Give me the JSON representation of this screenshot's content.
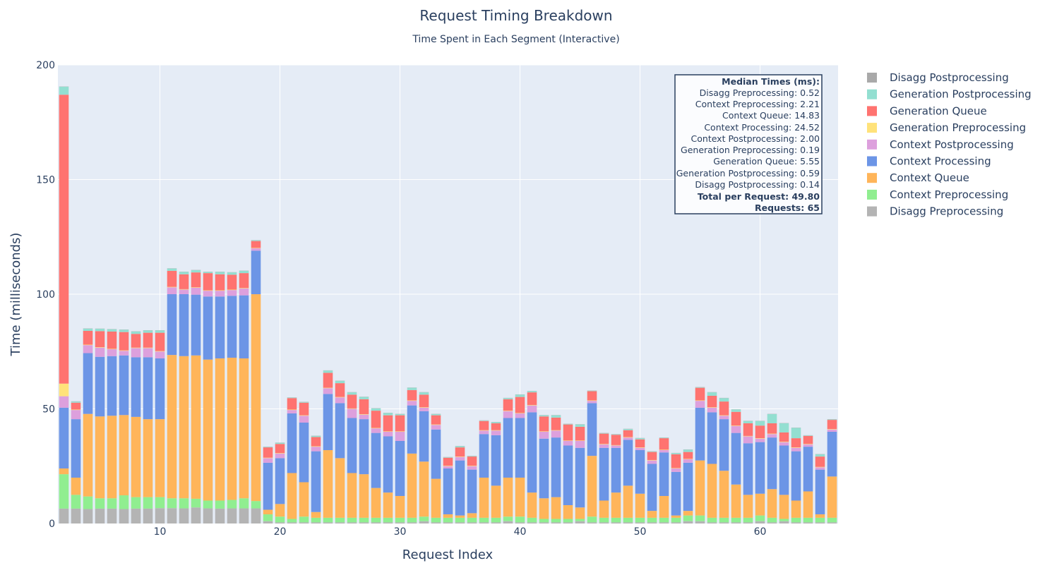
{
  "chart_data": {
    "type": "bar",
    "stacked": true,
    "title": "Request Timing Breakdown",
    "subtitle": "Time Spent in Each Segment (Interactive)",
    "xlabel": "Request Index",
    "ylabel": "Time (milliseconds)",
    "xlim": [
      1.5,
      66.5
    ],
    "ylim": [
      0,
      200
    ],
    "x_ticks": [
      10,
      20,
      30,
      40,
      50,
      60
    ],
    "y_ticks": [
      0,
      50,
      100,
      150,
      200
    ],
    "grid": true,
    "legend_position": "right",
    "x": [
      2,
      3,
      4,
      5,
      6,
      7,
      8,
      9,
      10,
      11,
      12,
      13,
      14,
      15,
      16,
      17,
      18,
      19,
      20,
      21,
      22,
      23,
      24,
      25,
      26,
      27,
      28,
      29,
      30,
      31,
      32,
      33,
      34,
      35,
      36,
      37,
      38,
      39,
      40,
      41,
      42,
      43,
      44,
      45,
      46,
      47,
      48,
      49,
      50,
      51,
      52,
      53,
      54,
      55,
      56,
      57,
      58,
      59,
      60,
      61,
      62,
      63,
      64,
      65,
      66
    ],
    "series": [
      {
        "name": "Disagg Preprocessing",
        "color": "#b4b4b4",
        "values": [
          6.5,
          6.5,
          6.3,
          6.5,
          6.5,
          6.3,
          6.5,
          6.5,
          6.7,
          6.7,
          6.6,
          7.0,
          6.6,
          6.5,
          6.6,
          6.6,
          6.6,
          1.0,
          0.5,
          0.5,
          0.5,
          0.5,
          0.5,
          0.5,
          0.5,
          0.5,
          0.5,
          0.5,
          0.5,
          0.5,
          1.0,
          0.5,
          0.5,
          0.5,
          0.5,
          0.5,
          0.5,
          1.0,
          0.5,
          0.5,
          0.5,
          0.5,
          0.5,
          1.0,
          0.5,
          0.5,
          0.5,
          0.5,
          0.5,
          0.5,
          0.5,
          0.5,
          1.0,
          1.0,
          0.5,
          0.5,
          0.5,
          0.5,
          1.0,
          0.5,
          1.0,
          0.5,
          0.5,
          0.5,
          0.5
        ]
      },
      {
        "name": "Context Preprocessing",
        "color": "#90ee90",
        "values": [
          15.0,
          6.0,
          5.5,
          4.5,
          4.5,
          6.0,
          5.0,
          5.0,
          4.8,
          4.3,
          4.4,
          3.8,
          3.4,
          3.5,
          3.7,
          4.4,
          3.2,
          3.0,
          2.5,
          1.5,
          2.5,
          2.0,
          2.0,
          2.0,
          2.0,
          2.0,
          2.0,
          2.0,
          2.0,
          2.0,
          2.0,
          2.0,
          2.0,
          2.0,
          2.0,
          2.0,
          2.0,
          2.0,
          2.5,
          2.0,
          1.5,
          1.5,
          1.5,
          1.0,
          2.5,
          2.0,
          2.0,
          2.0,
          2.0,
          2.0,
          2.0,
          2.0,
          2.5,
          2.5,
          2.0,
          2.0,
          2.0,
          2.0,
          2.5,
          2.0,
          1.0,
          2.0,
          2.0,
          2.0,
          2.0
        ]
      },
      {
        "name": "Context Queue",
        "color": "#ffb55a",
        "values": [
          2.5,
          7.5,
          36.0,
          35.7,
          36.0,
          35.0,
          35.0,
          34.0,
          34.0,
          62.5,
          62.0,
          62.5,
          61.5,
          62.0,
          62.0,
          61.0,
          90.2,
          2.0,
          5.5,
          20.0,
          15.0,
          2.5,
          29.5,
          26.0,
          19.5,
          19.0,
          13.0,
          11.0,
          9.5,
          28.0,
          24.0,
          17.0,
          1.5,
          1.0,
          2.0,
          17.5,
          14.0,
          17.0,
          17.0,
          11.0,
          9.0,
          9.5,
          6.0,
          5.0,
          26.5,
          7.5,
          11.0,
          14.0,
          10.5,
          3.0,
          9.5,
          1.0,
          2.0,
          24.0,
          23.5,
          20.5,
          14.5,
          10.0,
          9.5,
          12.5,
          10.5,
          7.5,
          11.5,
          1.5,
          18.0
        ]
      },
      {
        "name": "Context Processing",
        "color": "#6c95e6",
        "values": [
          26.5,
          25.5,
          26.5,
          26.0,
          26.0,
          26.0,
          26.0,
          27.0,
          26.5,
          26.5,
          27.0,
          26.5,
          27.5,
          27.0,
          27.0,
          27.5,
          19.0,
          20.5,
          20.0,
          26.0,
          26.0,
          26.5,
          24.5,
          24.0,
          24.0,
          24.0,
          24.0,
          24.5,
          24.0,
          21.0,
          22.0,
          21.5,
          20.0,
          24.0,
          19.0,
          19.0,
          22.0,
          26.0,
          26.0,
          35.0,
          26.0,
          26.0,
          26.0,
          26.0,
          23.0,
          23.0,
          19.5,
          20.0,
          19.0,
          20.5,
          19.0,
          19.0,
          21.0,
          23.0,
          22.5,
          22.5,
          22.5,
          22.5,
          22.5,
          22.5,
          21.5,
          21.5,
          19.5,
          19.5,
          19.5
        ]
      },
      {
        "name": "Context Postprocessing",
        "color": "#dda0dd",
        "values": [
          5.0,
          4.0,
          3.5,
          4.0,
          3.0,
          2.0,
          4.0,
          4.0,
          3.0,
          3.0,
          2.0,
          3.0,
          2.5,
          2.5,
          2.5,
          3.0,
          1.0,
          2.0,
          2.0,
          1.5,
          3.0,
          2.0,
          2.5,
          2.5,
          4.0,
          2.0,
          2.0,
          2.0,
          4.0,
          2.0,
          1.5,
          2.0,
          1.0,
          1.5,
          1.5,
          1.5,
          2.0,
          3.0,
          2.0,
          3.0,
          3.0,
          3.0,
          2.0,
          3.0,
          1.0,
          1.5,
          1.0,
          1.0,
          1.0,
          1.5,
          1.0,
          1.5,
          1.5,
          3.0,
          2.0,
          1.5,
          3.0,
          3.0,
          1.5,
          1.5,
          1.5,
          1.5,
          1.0,
          1.0,
          1.0
        ]
      },
      {
        "name": "Generation Preprocessing",
        "color": "#ffe27a",
        "values": [
          5.5,
          0.2,
          0.2,
          0.2,
          0.2,
          0.2,
          0.2,
          0.2,
          0.2,
          0.2,
          0.2,
          0.2,
          0.2,
          0.2,
          0.2,
          0.2,
          0.2,
          0.2,
          0.2,
          0.2,
          0.2,
          0.2,
          0.2,
          0.2,
          0.2,
          0.2,
          0.2,
          0.2,
          0.2,
          0.2,
          0.2,
          0.2,
          0.2,
          0.2,
          0.2,
          0.2,
          0.2,
          0.2,
          0.2,
          0.2,
          0.2,
          0.2,
          0.2,
          0.2,
          0.2,
          0.2,
          0.2,
          0.2,
          0.2,
          0.2,
          0.2,
          0.2,
          0.2,
          0.2,
          0.2,
          0.2,
          0.2,
          0.2,
          0.2,
          0.2,
          0.2,
          0.2,
          0.2,
          0.2,
          0.2
        ]
      },
      {
        "name": "Generation Queue",
        "color": "#ff7370",
        "values": [
          126.0,
          3.0,
          6.0,
          7.0,
          7.5,
          8.0,
          6.0,
          6.5,
          8.0,
          7.0,
          6.5,
          6.5,
          7.5,
          7.0,
          6.5,
          6.5,
          3.0,
          4.5,
          4.0,
          5.0,
          5.5,
          4.0,
          6.5,
          6.0,
          6.0,
          6.5,
          7.5,
          7.0,
          7.0,
          4.5,
          5.5,
          4.0,
          3.5,
          4.0,
          4.0,
          4.0,
          3.0,
          5.0,
          7.0,
          5.5,
          6.5,
          5.5,
          7.0,
          6.0,
          4.0,
          4.5,
          4.5,
          3.0,
          3.5,
          3.5,
          5.0,
          6.0,
          3.0,
          5.5,
          5.0,
          6.0,
          6.0,
          5.5,
          5.5,
          4.5,
          4.0,
          4.0,
          3.5,
          4.5,
          4.0
        ]
      },
      {
        "name": "Generation Postprocessing",
        "color": "#93dfd1",
        "values": [
          3.5,
          0.5,
          1.0,
          1.0,
          1.0,
          1.0,
          1.0,
          1.0,
          1.0,
          1.0,
          1.0,
          1.0,
          0.5,
          1.0,
          1.0,
          1.0,
          0.3,
          0.2,
          0.5,
          0.2,
          0.3,
          0.5,
          1.0,
          1.0,
          1.0,
          1.0,
          1.0,
          1.0,
          0.5,
          1.0,
          1.0,
          0.5,
          0.2,
          0.5,
          0.2,
          0.2,
          0.5,
          0.5,
          1.0,
          0.5,
          0.5,
          1.0,
          0.2,
          1.0,
          0.2,
          0.2,
          0.2,
          0.5,
          0.5,
          0.2,
          0.2,
          0.5,
          1.0,
          0.2,
          1.5,
          1.5,
          1.0,
          1.0,
          2.0,
          4.0,
          4.0,
          4.5,
          0.2,
          1.0,
          0.2
        ]
      },
      {
        "name": "Disagg Postprocessing",
        "color": "#a9a9a9",
        "values": [
          0.1,
          0.1,
          0.1,
          0.1,
          0.1,
          0.1,
          0.1,
          0.1,
          0.1,
          0.1,
          0.1,
          0.1,
          0.1,
          0.1,
          0.1,
          0.1,
          0.1,
          0.1,
          0.1,
          0.1,
          0.1,
          0.1,
          0.1,
          0.1,
          0.1,
          0.1,
          0.1,
          0.1,
          0.1,
          0.1,
          0.1,
          0.1,
          0.1,
          0.1,
          0.1,
          0.1,
          0.1,
          0.1,
          0.1,
          0.1,
          0.1,
          0.1,
          0.1,
          0.1,
          0.1,
          0.1,
          0.1,
          0.1,
          0.1,
          0.1,
          0.1,
          0.1,
          0.1,
          0.1,
          0.1,
          0.1,
          0.1,
          0.1,
          0.1,
          0.1,
          0.1,
          0.1,
          0.1,
          0.1,
          0.1
        ]
      }
    ],
    "legend_order": [
      "Disagg Postprocessing",
      "Generation Postprocessing",
      "Generation Queue",
      "Generation Preprocessing",
      "Context Postprocessing",
      "Context Processing",
      "Context Queue",
      "Context Preprocessing",
      "Disagg Preprocessing"
    ],
    "annotation": {
      "title": "Median Times (ms):",
      "lines": [
        "Disagg Preprocessing: 0.52",
        "Context Preprocessing: 2.21",
        "Context Queue: 14.83",
        "Context Processing: 24.52",
        "Context Postprocessing: 2.00",
        "Generation Preprocessing: 0.19",
        "Generation Queue: 5.55",
        "Generation Postprocessing: 0.59",
        "Disagg Postprocessing: 0.14"
      ],
      "total": "Total per Request: 49.80",
      "requests": "Requests: 65"
    }
  }
}
